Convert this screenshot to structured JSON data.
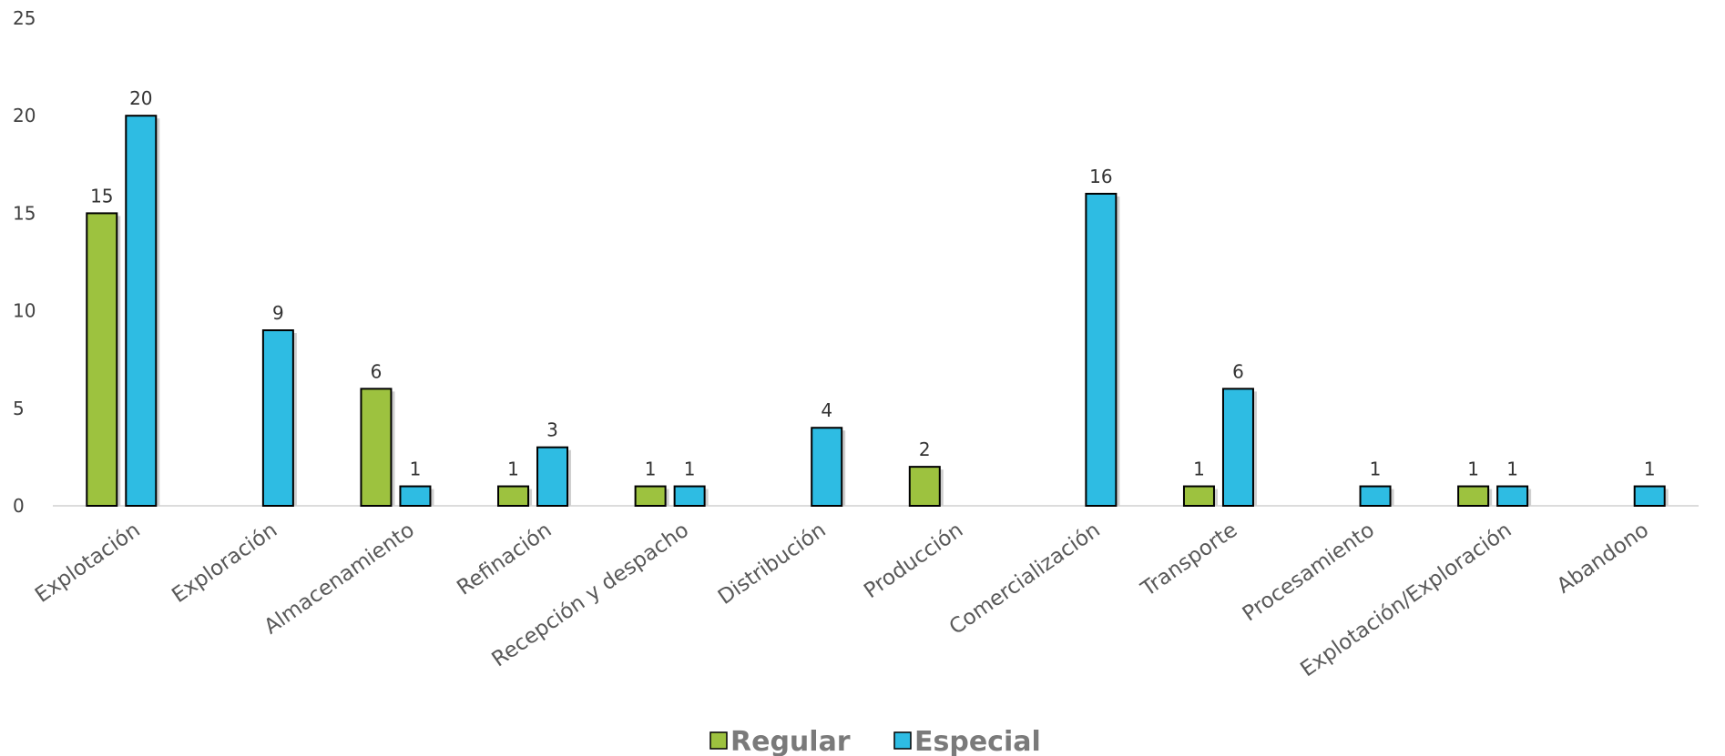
{
  "chart_data": {
    "type": "bar",
    "categories": [
      "Explotación",
      "Exploración",
      "Almacenamiento",
      "Refinación",
      "Recepción y despacho",
      "Distribución",
      "Producción",
      "Comercialización",
      "Transporte",
      "Procesamiento",
      "Explotación/Exploración",
      "Abandono"
    ],
    "series": [
      {
        "name": "Regular",
        "color": "#9dc23f",
        "values": [
          15,
          null,
          6,
          1,
          1,
          null,
          2,
          null,
          1,
          null,
          1,
          null
        ]
      },
      {
        "name": "Especial",
        "color": "#2ebce3",
        "values": [
          20,
          9,
          1,
          3,
          1,
          4,
          null,
          16,
          6,
          1,
          1,
          1
        ]
      }
    ],
    "yticks": [
      0,
      5,
      10,
      15,
      20,
      25
    ],
    "ylim": [
      0,
      25
    ],
    "grid": false,
    "legend_position": "bottom",
    "data_labels": true
  }
}
